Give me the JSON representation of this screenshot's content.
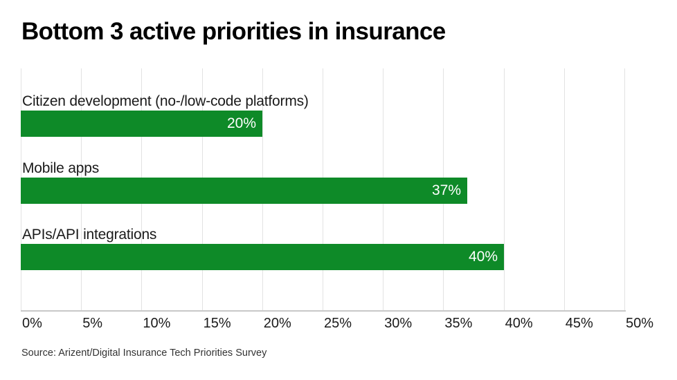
{
  "title": "Bottom 3 active priorities in insurance",
  "source": "Source: Arizent/Digital Insurance Tech Priorities Survey",
  "colors": {
    "bar_green": "#0e8a28",
    "gridline": "#e2e2e2",
    "axis_line": "#c8c8c8",
    "title_text": "#000000",
    "label_text": "#1a1a1a",
    "value_text": "#ffffff",
    "source_text": "#333333",
    "background": "#ffffff"
  },
  "chart_data": {
    "type": "bar",
    "orientation": "horizontal",
    "title": "Bottom 3 active priorities in insurance",
    "categories": [
      "Citizen development (no-/low-code platforms)",
      "Mobile apps",
      "APIs/API integrations"
    ],
    "values": [
      20,
      37,
      40
    ],
    "value_labels": [
      "20%",
      "37%",
      "40%"
    ],
    "xlabel": "",
    "ylabel": "",
    "xlim": [
      0,
      50
    ],
    "x_tick_step": 5,
    "x_ticks": [
      "0%",
      "5%",
      "10%",
      "15%",
      "20%",
      "25%",
      "30%",
      "35%",
      "40%",
      "45%",
      "50%"
    ],
    "grid": true,
    "legend": false,
    "value_labels_inside_bar_right": true,
    "source": "Source: Arizent/Digital Insurance Tech Priorities Survey"
  }
}
